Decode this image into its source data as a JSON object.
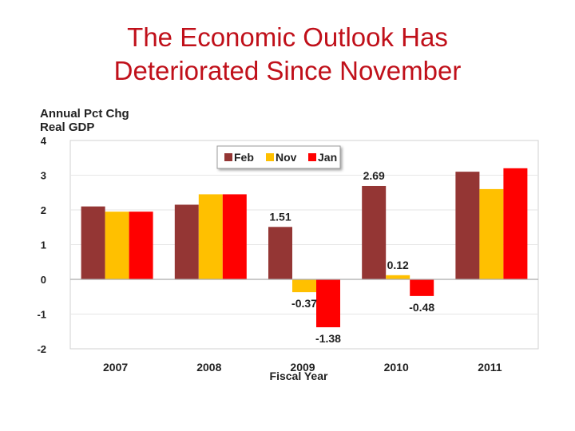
{
  "title": {
    "line1": "The Economic Outlook Has",
    "line2": "Deteriorated Since November"
  },
  "chart_data": {
    "type": "bar",
    "ylabel_line1": "Annual Pct Chg",
    "ylabel_line2": "Real GDP",
    "xlabel": "Fiscal Year",
    "categories": [
      "2007",
      "2008",
      "2009",
      "2010",
      "2011"
    ],
    "series": [
      {
        "name": "Feb",
        "color": "#943634",
        "values": [
          2.1,
          2.15,
          1.51,
          2.69,
          3.1
        ]
      },
      {
        "name": "Nov",
        "color": "#ffc000",
        "values": [
          1.95,
          2.45,
          -0.37,
          0.12,
          2.6
        ]
      },
      {
        "name": "Jan",
        "color": "#ff0000",
        "values": [
          1.95,
          2.45,
          -1.38,
          -0.48,
          3.2
        ]
      }
    ],
    "ylim": [
      -2,
      4
    ],
    "yticks": [
      4,
      3,
      2,
      1,
      0,
      -1,
      -2
    ],
    "data_labels": [
      {
        "category": "2009",
        "series": "Feb",
        "text": "1.51"
      },
      {
        "category": "2009",
        "series": "Nov",
        "text": "-0.37"
      },
      {
        "category": "2009",
        "series": "Jan",
        "text": "-1.38"
      },
      {
        "category": "2010",
        "series": "Feb",
        "text": "2.69"
      },
      {
        "category": "2010",
        "series": "Nov",
        "text": "0.12"
      },
      {
        "category": "2010",
        "series": "Jan",
        "text": "-0.48"
      }
    ],
    "legend_position": "top-center"
  }
}
